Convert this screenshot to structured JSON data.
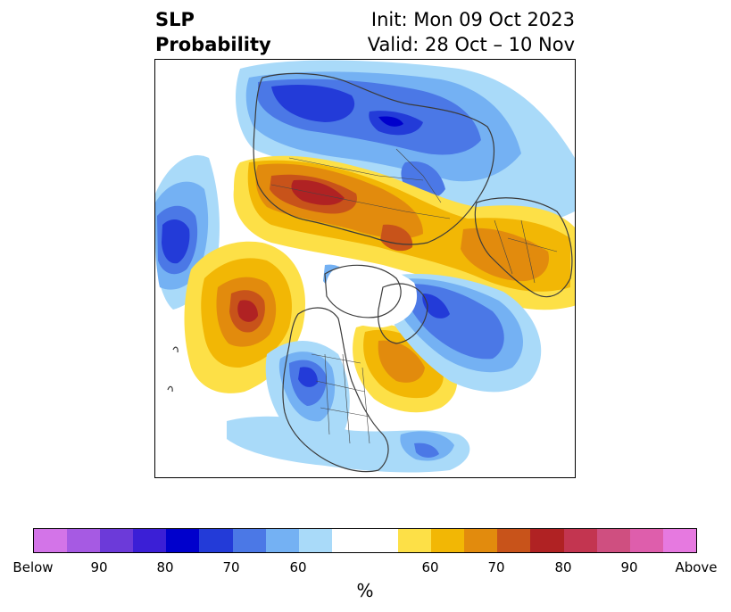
{
  "title": {
    "left_line1": "SLP",
    "left_line2": "Probability",
    "right_line1": "Init: Mon 09 Oct 2023",
    "right_line2": "Valid: 28 Oct – 10 Nov"
  },
  "colorbar": {
    "unit": "%",
    "colors": [
      "#d374e8",
      "#a65ae3",
      "#6c3ad9",
      "#3b1fd6",
      "#0000cc",
      "#233bd8",
      "#4b78e6",
      "#74b1f3",
      "#a9daf9",
      "#ffffff",
      "#ffffff",
      "#fde047",
      "#f2b705",
      "#e28b0d",
      "#c8531a",
      "#b02223",
      "#c33550",
      "#cf4f80",
      "#de5eac",
      "#e679e0"
    ],
    "ticks": [
      "Below",
      "90",
      "80",
      "70",
      "60",
      "60",
      "70",
      "80",
      "90",
      "Above"
    ]
  },
  "map": {
    "legend_colors": {
      "blue_light": "#a9daf9",
      "blue_60": "#74b1f3",
      "blue_70": "#4b78e6",
      "blue_75": "#233bd8",
      "blue_80": "#0000cc",
      "yellow_50": "#fde047",
      "orange_60": "#f2b705",
      "orange_65": "#e28b0d",
      "orange_70": "#c8531a",
      "red_75": "#b02223"
    }
  }
}
